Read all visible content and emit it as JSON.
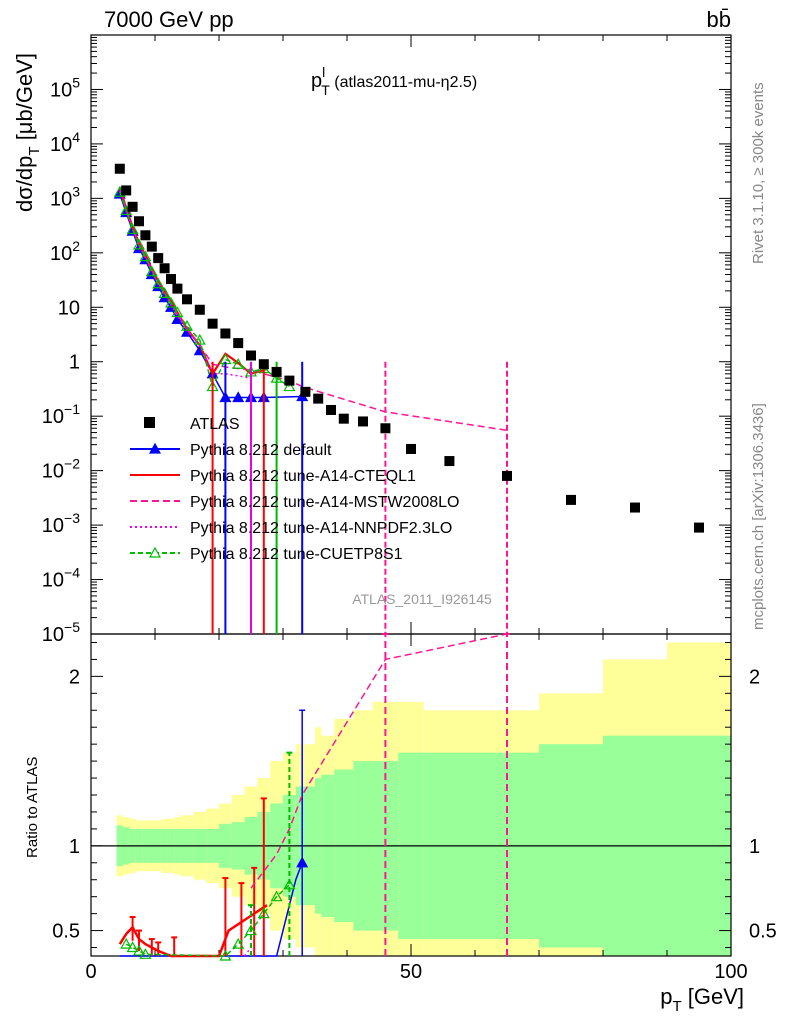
{
  "header": {
    "left": "7000 GeV pp",
    "right": "bb̄",
    "rivet": "Rivet 3.1.10, ≥ 300k events",
    "mcplots": "mcplots.cern.ch [arXiv:1306.3436]"
  },
  "chart_data": {
    "type": "scatter",
    "title_main": "p",
    "title_sup": "l",
    "title_sub": "T",
    "title_rest": " (atlas2011-mu-η2.5)",
    "analysis_label": "ATLAS_2011_I926145",
    "xlim": [
      0,
      100
    ],
    "xticks": [
      "0",
      "50",
      "100"
    ],
    "xlabel_main": "p",
    "xlabel_sub": "T",
    "xlabel_unit": " [GeV]",
    "upper": {
      "ylabel": "dσ/dp",
      "ylabel_sub": "T",
      "ylabel_unit": " [μb/GeV]",
      "yscale": "log",
      "ylim": [
        1e-05,
        1000000.0
      ],
      "ytick_labels": [
        {
          "v": 100000,
          "b": "10",
          "e": "5"
        },
        {
          "v": 10000,
          "b": "10",
          "e": "4"
        },
        {
          "v": 1000,
          "b": "10",
          "e": "3"
        },
        {
          "v": 100,
          "b": "10",
          "e": "2"
        },
        {
          "v": 10,
          "b": "10",
          "e": ""
        },
        {
          "v": 1,
          "b": "1",
          "e": ""
        },
        {
          "v": 0.1,
          "b": "10",
          "e": "−1"
        },
        {
          "v": 0.01,
          "b": "10",
          "e": "−2"
        },
        {
          "v": 0.001,
          "b": "10",
          "e": "−3"
        },
        {
          "v": 0.0001,
          "b": "10",
          "e": "−4"
        },
        {
          "v": 1e-05,
          "b": "10",
          "e": "−5"
        }
      ]
    },
    "lower": {
      "ylabel": "Ratio to ATLAS",
      "ylim": [
        0.35,
        2.25
      ],
      "yticks": [
        0.5,
        1,
        2
      ],
      "ytick_labels": [
        "0.5",
        "1",
        "2"
      ]
    },
    "data": {
      "name": "ATLAS",
      "x": [
        4.5,
        5.5,
        6.5,
        7.5,
        8.5,
        9.5,
        10.5,
        11.5,
        12.5,
        13.5,
        15,
        17,
        19,
        21,
        23,
        25,
        27,
        29,
        31,
        33.5,
        35.5,
        37.5,
        39.5,
        42.5,
        46,
        50,
        56,
        65,
        75,
        85,
        95
      ],
      "y": [
        3500,
        1400,
        700,
        380,
        210,
        130,
        80,
        52,
        33,
        22,
        14,
        9,
        5,
        3.3,
        2.2,
        1.3,
        0.9,
        0.65,
        0.45,
        0.28,
        0.21,
        0.13,
        0.09,
        0.08,
        0.06,
        0.025,
        0.015,
        0.008,
        0.0029,
        0.0021,
        0.0009
      ],
      "bins": [
        4,
        5,
        6,
        7,
        8,
        9,
        10,
        11,
        12,
        13,
        14,
        16,
        18,
        20,
        22,
        24,
        26,
        28,
        30,
        32,
        35,
        36,
        38,
        41,
        44,
        48,
        52,
        60,
        70,
        80,
        90,
        100
      ],
      "band_inner": [
        0.12,
        0.11,
        0.1,
        0.1,
        0.1,
        0.1,
        0.1,
        0.1,
        0.1,
        0.1,
        0.1,
        0.1,
        0.1,
        0.13,
        0.14,
        0.17,
        0.2,
        0.25,
        0.3,
        0.35,
        0.4,
        0.42,
        0.45,
        0.5,
        0.5,
        0.55,
        0.55,
        0.55,
        0.6,
        0.65,
        0.65
      ],
      "band_outer": [
        0.18,
        0.17,
        0.16,
        0.15,
        0.15,
        0.15,
        0.15,
        0.16,
        0.16,
        0.17,
        0.18,
        0.2,
        0.22,
        0.25,
        0.3,
        0.35,
        0.4,
        0.5,
        0.55,
        0.6,
        0.7,
        0.65,
        0.75,
        0.8,
        0.85,
        0.85,
        0.8,
        0.8,
        0.9,
        1.1,
        1.2
      ]
    },
    "series": [
      {
        "name": "Pythia 8.212 default",
        "color": "#0000ff",
        "dash": "",
        "marker": "tri-filled",
        "x": [
          4.5,
          5.5,
          6.5,
          7.5,
          8.5,
          9.5,
          10.5,
          11.5,
          12.5,
          13.5,
          15,
          17,
          19,
          21,
          23,
          25,
          27,
          33
        ],
        "y": [
          1200,
          550,
          250,
          120,
          75,
          40,
          24,
          15,
          10,
          6,
          3.5,
          1.6,
          0.6,
          0.22,
          0.22,
          0.22,
          0.22,
          0.23
        ],
        "ratio_x": [
          4.5,
          5.5,
          6.5,
          7.5,
          8.5,
          29,
          30,
          31,
          32,
          33
        ],
        "ratio_y": [
          0.35,
          0.35,
          0.33,
          0.33,
          0.32,
          0.35,
          0.5,
          0.65,
          0.8,
          0.9
        ],
        "ratio_err": {
          "x": 33,
          "lo": 0.35,
          "hi": 1.8
        }
      },
      {
        "name": "Pythia 8.212 tune-A14-CTEQL1",
        "color": "#ff0000",
        "dash": "",
        "marker": "none",
        "x": [
          4.5,
          5.5,
          6.5,
          7.5,
          8.5,
          9.5,
          10.5,
          11.5,
          12.5,
          13.5,
          15,
          17,
          19,
          21,
          23,
          25,
          27
        ],
        "y": [
          1600,
          650,
          300,
          150,
          90,
          50,
          30,
          20,
          13,
          8,
          4,
          2,
          0.6,
          1.4,
          0.95,
          0.6,
          0.7
        ],
        "ratio_x": [
          4.5,
          5.5,
          6.5,
          7.5,
          8.5,
          9.5,
          10.5,
          12.5,
          20,
          21.5,
          23.5,
          25.5,
          27.5
        ],
        "ratio_y": [
          0.42,
          0.48,
          0.52,
          0.45,
          0.42,
          0.4,
          0.38,
          0.35,
          0.35,
          0.5,
          0.55,
          0.6,
          0.65
        ],
        "ratio_errs": [
          [
            6.5,
            0.44,
            0.58
          ],
          [
            7.5,
            0.38,
            0.5
          ],
          [
            9.5,
            0.35,
            0.45
          ],
          [
            10.5,
            0.35,
            0.43
          ],
          [
            13,
            0.35,
            0.46
          ],
          [
            21,
            0.35,
            0.81
          ],
          [
            23.5,
            0.35,
            0.78
          ],
          [
            25.5,
            0.35,
            0.87
          ],
          [
            27,
            0.35,
            1.28
          ]
        ]
      },
      {
        "name": "Pythia 8.212 tune-A14-MSTW2008LO",
        "color": "#ff1493",
        "dash": "7,4",
        "marker": "none",
        "x": [
          4.5,
          5.5,
          6.5,
          7.5,
          8.5,
          9.5,
          10.5,
          11.5,
          12.5,
          13.5,
          15,
          17,
          19,
          21,
          23,
          25,
          27,
          31,
          33,
          46,
          65
        ],
        "y": [
          1500,
          600,
          280,
          140,
          85,
          48,
          28,
          18,
          12,
          7.5,
          4,
          2,
          0.9,
          0.8,
          0.75,
          0.7,
          0.6,
          0.45,
          0.35,
          0.12,
          0.055
        ],
        "ratio_x": [
          25,
          27,
          29,
          31,
          33,
          46,
          65
        ],
        "ratio_y": [
          0.75,
          0.85,
          0.95,
          1.1,
          1.3,
          2.1,
          2.3
        ],
        "ratio_errs": [
          [
            46,
            0.35,
            2.25
          ],
          [
            65,
            0.35,
            2.25
          ]
        ]
      },
      {
        "name": "Pythia 8.212 tune-A14-NNPDF2.3LO",
        "color": "#ee00ee",
        "dash": "2,3",
        "marker": "none",
        "x": [
          4.5,
          5.5,
          6.5,
          7.5,
          8.5,
          9.5,
          10.5,
          11.5,
          12.5,
          13.5,
          15,
          17,
          19,
          21,
          23,
          25
        ],
        "y": [
          1400,
          600,
          270,
          130,
          80,
          45,
          26,
          17,
          11,
          7,
          3.8,
          2,
          0.6,
          0.6,
          0.55,
          0.5
        ],
        "ratio_x": [
          24,
          25
        ],
        "ratio_y": [
          0.35,
          0.4
        ],
        "ratio_errs": []
      },
      {
        "name": "Pythia 8.212 tune-CUETP8S1",
        "color": "#00bb00",
        "dash": "5,3",
        "marker": "tri-open",
        "x": [
          4.5,
          5.5,
          6.5,
          7.5,
          8.5,
          9.5,
          10.5,
          11.5,
          12.5,
          13.5,
          15,
          17,
          19,
          21,
          23,
          25,
          27,
          29,
          31
        ],
        "y": [
          1300,
          600,
          270,
          140,
          85,
          45,
          27,
          18,
          12,
          8,
          4.5,
          2.5,
          0.35,
          1.1,
          0.9,
          0.65,
          0.75,
          0.5,
          0.35
        ],
        "ratio_x": [
          5.5,
          6.5,
          7.5,
          8.5,
          21,
          23,
          25,
          27,
          29,
          31
        ],
        "ratio_y": [
          0.42,
          0.4,
          0.38,
          0.36,
          0.35,
          0.42,
          0.5,
          0.6,
          0.7,
          0.77
        ],
        "ratio_errs": [
          [
            31,
            0.35,
            1.55
          ],
          [
            25,
            0.35,
            0.65
          ]
        ]
      }
    ]
  }
}
